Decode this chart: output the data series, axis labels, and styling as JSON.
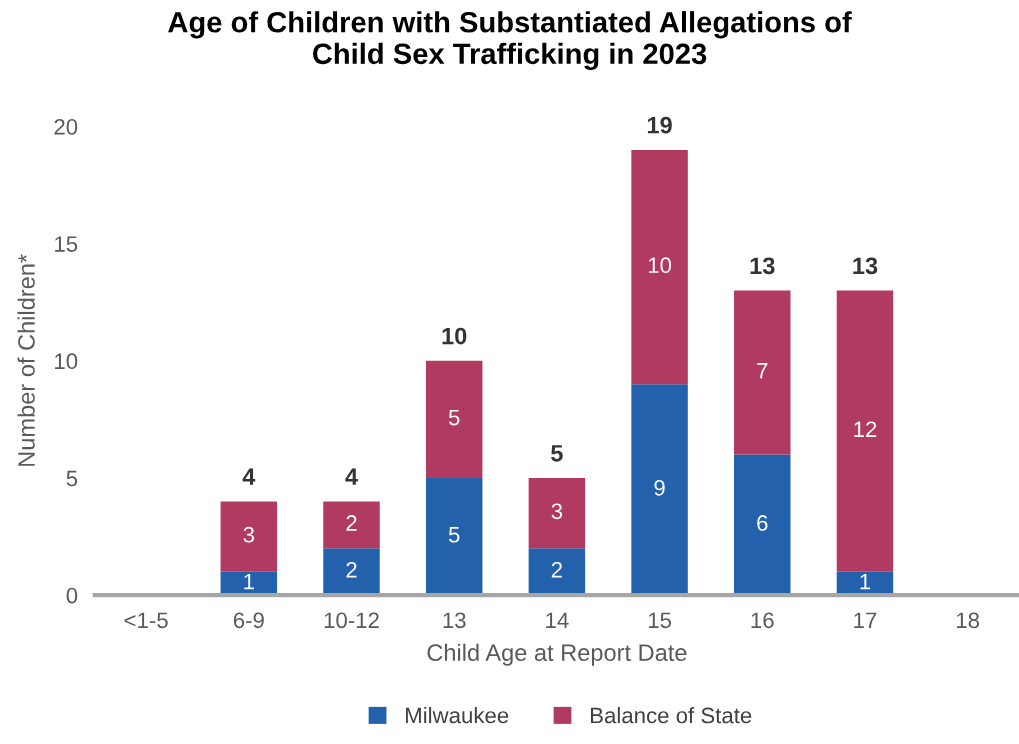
{
  "chart_data": {
    "type": "bar",
    "title": "Age of Children with Substantiated Allegations of\nChild Sex Trafficking in 2023",
    "xlabel": "Child Age at Report Date",
    "ylabel": "Number of Children*",
    "categories": [
      "<1-5",
      "6-9",
      "10-12",
      "13",
      "14",
      "15",
      "16",
      "17",
      "18"
    ],
    "stacked": true,
    "series": [
      {
        "name": "Milwaukee",
        "color": "#2361ad",
        "values": [
          0,
          1,
          2,
          5,
          2,
          9,
          6,
          1,
          0
        ],
        "value_labels": [
          null,
          "1",
          "2",
          "5",
          "2",
          "9",
          "6",
          "1",
          null
        ]
      },
      {
        "name": "Balance of State",
        "color": "#b03a60",
        "values": [
          0,
          3,
          2,
          5,
          3,
          10,
          7,
          12,
          0
        ],
        "value_labels": [
          null,
          "3",
          "2",
          "5",
          "3",
          "10",
          "7",
          "12",
          null
        ]
      }
    ],
    "totals": [
      null,
      "4",
      "4",
      "10",
      "5",
      "19",
      "13",
      "13",
      null
    ],
    "ylim": [
      0,
      20
    ],
    "yticks": [
      0,
      5,
      10,
      15,
      20
    ],
    "grid": false,
    "legend": "bottom"
  }
}
